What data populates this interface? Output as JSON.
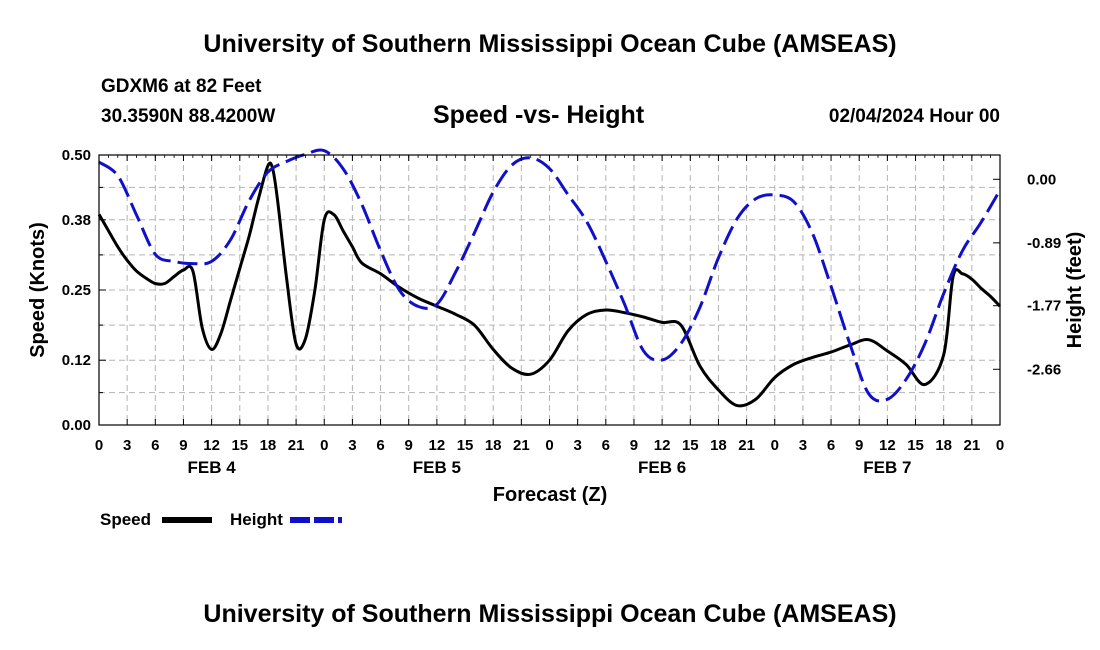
{
  "header": {
    "title": "University of Southern Mississippi Ocean Cube (AMSEAS)",
    "station": "GDXM6 at 82 Feet",
    "location": "30.3590N  88.4200W",
    "subtitle": "Speed -vs- Height",
    "datetime": "02/04/2024 Hour 00"
  },
  "legend": {
    "speed_label": "Speed",
    "height_label": "Height"
  },
  "footer": {
    "title": "University of Southern Mississippi Ocean Cube (AMSEAS)"
  },
  "colors": {
    "speed": "#000000",
    "height": "#1010c8",
    "grid": "#b4b4b4"
  },
  "chart_data": {
    "type": "line",
    "xlabel": "Forecast (Z)",
    "ylabel": "Speed (Knots)",
    "y2label": "Height (feet)",
    "xlim": [
      0,
      96
    ],
    "ylim": [
      0,
      0.5
    ],
    "y2lim": [
      -3.44,
      0.34
    ],
    "x_ticks": [
      0,
      3,
      6,
      9,
      12,
      15,
      18,
      21,
      24,
      27,
      30,
      33,
      36,
      39,
      42,
      45,
      48,
      51,
      54,
      57,
      60,
      63,
      66,
      69,
      72,
      75,
      78,
      81,
      84,
      87,
      90,
      93,
      96
    ],
    "x_tick_labels": [
      "0",
      "3",
      "6",
      "9",
      "12",
      "15",
      "18",
      "21",
      "0",
      "3",
      "6",
      "9",
      "12",
      "15",
      "18",
      "21",
      "0",
      "3",
      "6",
      "9",
      "12",
      "15",
      "18",
      "21",
      "0",
      "3",
      "6",
      "9",
      "12",
      "15",
      "18",
      "21",
      "0"
    ],
    "day_labels": [
      {
        "x": 12,
        "label": "FEB 4"
      },
      {
        "x": 36,
        "label": "FEB 5"
      },
      {
        "x": 60,
        "label": "FEB 6"
      },
      {
        "x": 84,
        "label": "FEB 7"
      }
    ],
    "y_ticks": [
      0.0,
      0.12,
      0.25,
      0.38,
      0.5
    ],
    "y_tick_labels": [
      "0.00",
      "0.12",
      "0.25",
      "0.38",
      "0.50"
    ],
    "y2_ticks": [
      0.0,
      -0.89,
      -1.77,
      -2.66
    ],
    "y2_tick_labels": [
      "0.00",
      "-0.89",
      "-1.77",
      "-2.66"
    ],
    "series": [
      {
        "name": "Speed",
        "axis": "left",
        "x": [
          0,
          1,
          2,
          3,
          4,
          5,
          6,
          7,
          8,
          9,
          10,
          11,
          12,
          13,
          14,
          15,
          16,
          17,
          18,
          18.5,
          19,
          20,
          21,
          22,
          23,
          24,
          25,
          26,
          27,
          28,
          30,
          32,
          34,
          36,
          38,
          40,
          42,
          44,
          46,
          48,
          50,
          52,
          54,
          56,
          58,
          60,
          62,
          64,
          66,
          68,
          70,
          72,
          74,
          76,
          78,
          80,
          82,
          84,
          86,
          88,
          90,
          91,
          92,
          93,
          94,
          95,
          96
        ],
        "values": [
          0.39,
          0.36,
          0.33,
          0.305,
          0.285,
          0.272,
          0.262,
          0.262,
          0.275,
          0.287,
          0.285,
          0.18,
          0.14,
          0.17,
          0.23,
          0.29,
          0.35,
          0.42,
          0.48,
          0.475,
          0.42,
          0.27,
          0.15,
          0.16,
          0.25,
          0.38,
          0.39,
          0.36,
          0.33,
          0.3,
          0.28,
          0.255,
          0.235,
          0.22,
          0.205,
          0.185,
          0.14,
          0.105,
          0.094,
          0.12,
          0.175,
          0.205,
          0.213,
          0.208,
          0.2,
          0.19,
          0.185,
          0.11,
          0.065,
          0.036,
          0.048,
          0.088,
          0.112,
          0.125,
          0.135,
          0.148,
          0.158,
          0.137,
          0.112,
          0.075,
          0.13,
          0.275,
          0.28,
          0.27,
          0.253,
          0.238,
          0.22
        ]
      },
      {
        "name": "Height",
        "axis": "right",
        "x": [
          0,
          2,
          4,
          6,
          8,
          10,
          12,
          14,
          16,
          18,
          20,
          22,
          24,
          26,
          28,
          30,
          32,
          34,
          36,
          38,
          40,
          42,
          44,
          46,
          48,
          50,
          52,
          54,
          56,
          58,
          60,
          62,
          64,
          66,
          68,
          70,
          72,
          74,
          76,
          78,
          80,
          82,
          84,
          86,
          88,
          90,
          92,
          94,
          96
        ],
        "values": [
          0.24,
          0.05,
          -0.5,
          -1.05,
          -1.15,
          -1.18,
          -1.15,
          -0.85,
          -0.3,
          0.1,
          0.25,
          0.35,
          0.4,
          0.15,
          -0.35,
          -1.0,
          -1.55,
          -1.78,
          -1.75,
          -1.3,
          -0.75,
          -0.18,
          0.2,
          0.3,
          0.15,
          -0.22,
          -0.6,
          -1.15,
          -1.75,
          -2.4,
          -2.53,
          -2.3,
          -1.8,
          -1.1,
          -0.55,
          -0.27,
          -0.22,
          -0.31,
          -0.75,
          -1.5,
          -2.3,
          -3.0,
          -3.08,
          -2.8,
          -2.3,
          -1.6,
          -1.0,
          -0.6,
          -0.15
        ]
      }
    ]
  }
}
